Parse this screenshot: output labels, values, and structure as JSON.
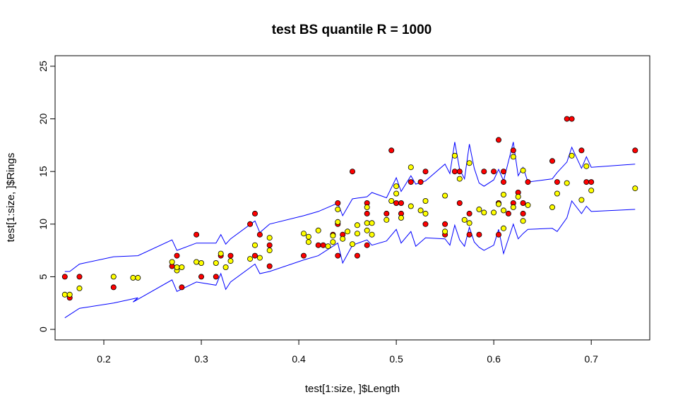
{
  "chart_data": {
    "type": "scatter",
    "title": "test BS quantile R = 1000",
    "xlabel": "test[1:size, ]$Length",
    "ylabel": "test[1:size, ]$Rings",
    "xlim": [
      0.15,
      0.76
    ],
    "ylim": [
      -1.0,
      26.0
    ],
    "x_ticks": [
      0.2,
      0.3,
      0.4,
      0.5,
      0.6,
      0.7
    ],
    "x_tick_labels": [
      "0.2",
      "0.3",
      "0.4",
      "0.5",
      "0.6",
      "0.7"
    ],
    "y_ticks": [
      0,
      5,
      10,
      15,
      20,
      25
    ],
    "y_tick_labels": [
      "0",
      "5",
      "10",
      "15",
      "20",
      "25"
    ],
    "grid": false,
    "colors": {
      "observed": "#ff0000",
      "predicted": "#ffff00",
      "band": "#0000ff",
      "outline": "#000000"
    },
    "series": [
      {
        "role": "observed",
        "points": [
          [
            0.16,
            5
          ],
          [
            0.165,
            3
          ],
          [
            0.175,
            5
          ],
          [
            0.21,
            4
          ],
          [
            0.27,
            6
          ],
          [
            0.275,
            7
          ],
          [
            0.28,
            4
          ],
          [
            0.295,
            9
          ],
          [
            0.3,
            5
          ],
          [
            0.315,
            5
          ],
          [
            0.32,
            7
          ],
          [
            0.33,
            7
          ],
          [
            0.35,
            10
          ],
          [
            0.355,
            11
          ],
          [
            0.355,
            7
          ],
          [
            0.36,
            9
          ],
          [
            0.37,
            6
          ],
          [
            0.37,
            8
          ],
          [
            0.405,
            7
          ],
          [
            0.42,
            8
          ],
          [
            0.425,
            8
          ],
          [
            0.435,
            9
          ],
          [
            0.44,
            7
          ],
          [
            0.44,
            10
          ],
          [
            0.44,
            12
          ],
          [
            0.445,
            9
          ],
          [
            0.455,
            15
          ],
          [
            0.46,
            7
          ],
          [
            0.47,
            11
          ],
          [
            0.47,
            12
          ],
          [
            0.47,
            8
          ],
          [
            0.49,
            11
          ],
          [
            0.495,
            17
          ],
          [
            0.5,
            12
          ],
          [
            0.505,
            12
          ],
          [
            0.505,
            11
          ],
          [
            0.515,
            14
          ],
          [
            0.525,
            14
          ],
          [
            0.53,
            15
          ],
          [
            0.53,
            10
          ],
          [
            0.55,
            10
          ],
          [
            0.55,
            9
          ],
          [
            0.56,
            15
          ],
          [
            0.565,
            15
          ],
          [
            0.565,
            12
          ],
          [
            0.575,
            9
          ],
          [
            0.575,
            11
          ],
          [
            0.585,
            9
          ],
          [
            0.59,
            15
          ],
          [
            0.6,
            15
          ],
          [
            0.605,
            18
          ],
          [
            0.605,
            9
          ],
          [
            0.605,
            12
          ],
          [
            0.61,
            14
          ],
          [
            0.61,
            15
          ],
          [
            0.615,
            11
          ],
          [
            0.62,
            17
          ],
          [
            0.62,
            12
          ],
          [
            0.625,
            13
          ],
          [
            0.63,
            12
          ],
          [
            0.63,
            11
          ],
          [
            0.635,
            14
          ],
          [
            0.66,
            16
          ],
          [
            0.665,
            14
          ],
          [
            0.675,
            20
          ],
          [
            0.68,
            20
          ],
          [
            0.69,
            17
          ],
          [
            0.695,
            14
          ],
          [
            0.7,
            14
          ],
          [
            0.745,
            17
          ]
        ]
      },
      {
        "role": "predicted",
        "points": [
          [
            0.16,
            3.3
          ],
          [
            0.165,
            3.3
          ],
          [
            0.175,
            3.9
          ],
          [
            0.21,
            5
          ],
          [
            0.23,
            4.9
          ],
          [
            0.235,
            4.9
          ],
          [
            0.27,
            6.4
          ],
          [
            0.275,
            5.6
          ],
          [
            0.275,
            5.9
          ],
          [
            0.28,
            5.9
          ],
          [
            0.295,
            6.4
          ],
          [
            0.3,
            6.3
          ],
          [
            0.315,
            6.3
          ],
          [
            0.32,
            7.2
          ],
          [
            0.325,
            5.9
          ],
          [
            0.33,
            6.5
          ],
          [
            0.35,
            6.7
          ],
          [
            0.355,
            8
          ],
          [
            0.36,
            6.8
          ],
          [
            0.37,
            7.5
          ],
          [
            0.37,
            8.7
          ],
          [
            0.405,
            9.1
          ],
          [
            0.41,
            8.3
          ],
          [
            0.41,
            8.8
          ],
          [
            0.42,
            9.4
          ],
          [
            0.43,
            7.9
          ],
          [
            0.435,
            8.3
          ],
          [
            0.435,
            8.9
          ],
          [
            0.44,
            10.2
          ],
          [
            0.44,
            11.4
          ],
          [
            0.445,
            8.6
          ],
          [
            0.45,
            9.3
          ],
          [
            0.455,
            8.1
          ],
          [
            0.46,
            9.9
          ],
          [
            0.46,
            9.1
          ],
          [
            0.47,
            10.1
          ],
          [
            0.47,
            11.6
          ],
          [
            0.47,
            9.4
          ],
          [
            0.475,
            9
          ],
          [
            0.475,
            10.1
          ],
          [
            0.49,
            10.4
          ],
          [
            0.495,
            12.2
          ],
          [
            0.5,
            12.9
          ],
          [
            0.5,
            13.6
          ],
          [
            0.505,
            10.6
          ],
          [
            0.515,
            11.7
          ],
          [
            0.515,
            15.4
          ],
          [
            0.525,
            11.3
          ],
          [
            0.53,
            11
          ],
          [
            0.53,
            12.2
          ],
          [
            0.55,
            12.7
          ],
          [
            0.55,
            9.3
          ],
          [
            0.56,
            16.5
          ],
          [
            0.565,
            14.3
          ],
          [
            0.57,
            10.4
          ],
          [
            0.575,
            10.1
          ],
          [
            0.575,
            15.8
          ],
          [
            0.585,
            11.4
          ],
          [
            0.59,
            11.1
          ],
          [
            0.6,
            11.1
          ],
          [
            0.605,
            11.9
          ],
          [
            0.61,
            12.8
          ],
          [
            0.61,
            11.3
          ],
          [
            0.61,
            9.6
          ],
          [
            0.62,
            11.6
          ],
          [
            0.62,
            16.4
          ],
          [
            0.625,
            12.6
          ],
          [
            0.63,
            15.1
          ],
          [
            0.63,
            10.3
          ],
          [
            0.635,
            11.8
          ],
          [
            0.66,
            11.6
          ],
          [
            0.665,
            12.9
          ],
          [
            0.675,
            13.9
          ],
          [
            0.68,
            16.5
          ],
          [
            0.69,
            12.3
          ],
          [
            0.695,
            15.5
          ],
          [
            0.7,
            13.2
          ],
          [
            0.745,
            13.4
          ]
        ]
      },
      {
        "role": "band",
        "name": "upper",
        "points": [
          [
            0.16,
            5.5
          ],
          [
            0.165,
            5.5
          ],
          [
            0.175,
            6.2
          ],
          [
            0.21,
            6.9
          ],
          [
            0.235,
            7
          ],
          [
            0.27,
            8.5
          ],
          [
            0.275,
            7.5
          ],
          [
            0.295,
            8.2
          ],
          [
            0.315,
            8.2
          ],
          [
            0.32,
            9
          ],
          [
            0.325,
            8.1
          ],
          [
            0.33,
            8.6
          ],
          [
            0.355,
            10.3
          ],
          [
            0.36,
            9.2
          ],
          [
            0.37,
            10
          ],
          [
            0.405,
            10.8
          ],
          [
            0.42,
            11.2
          ],
          [
            0.44,
            12
          ],
          [
            0.445,
            10.8
          ],
          [
            0.455,
            12.4
          ],
          [
            0.47,
            12.6
          ],
          [
            0.475,
            13
          ],
          [
            0.49,
            12.5
          ],
          [
            0.5,
            14.4
          ],
          [
            0.505,
            13.1
          ],
          [
            0.515,
            14.6
          ],
          [
            0.52,
            13.8
          ],
          [
            0.53,
            14.1
          ],
          [
            0.55,
            15.7
          ],
          [
            0.555,
            14.8
          ],
          [
            0.56,
            17.8
          ],
          [
            0.565,
            15.2
          ],
          [
            0.57,
            14.3
          ],
          [
            0.575,
            17.6
          ],
          [
            0.58,
            15.3
          ],
          [
            0.585,
            13.9
          ],
          [
            0.59,
            13.6
          ],
          [
            0.6,
            14.2
          ],
          [
            0.605,
            15.2
          ],
          [
            0.61,
            14.1
          ],
          [
            0.62,
            17.8
          ],
          [
            0.625,
            14.6
          ],
          [
            0.63,
            15.4
          ],
          [
            0.635,
            14
          ],
          [
            0.66,
            14.3
          ],
          [
            0.665,
            14.9
          ],
          [
            0.675,
            15.9
          ],
          [
            0.68,
            17.3
          ],
          [
            0.69,
            15.3
          ],
          [
            0.695,
            16.4
          ],
          [
            0.7,
            15.4
          ],
          [
            0.745,
            15.7
          ]
        ]
      },
      {
        "role": "band",
        "name": "lower",
        "points": [
          [
            0.16,
            1.1
          ],
          [
            0.165,
            1.4
          ],
          [
            0.175,
            2.0
          ],
          [
            0.21,
            2.5
          ],
          [
            0.235,
            3
          ],
          [
            0.23,
            2.6
          ],
          [
            0.27,
            4.7
          ],
          [
            0.275,
            3.6
          ],
          [
            0.295,
            4.5
          ],
          [
            0.315,
            4.2
          ],
          [
            0.32,
            5.3
          ],
          [
            0.325,
            3.8
          ],
          [
            0.33,
            4.5
          ],
          [
            0.355,
            6.2
          ],
          [
            0.36,
            5.3
          ],
          [
            0.37,
            5.5
          ],
          [
            0.405,
            6.6
          ],
          [
            0.42,
            7
          ],
          [
            0.44,
            8.2
          ],
          [
            0.445,
            6.3
          ],
          [
            0.455,
            8
          ],
          [
            0.47,
            8.5
          ],
          [
            0.475,
            8
          ],
          [
            0.49,
            8.4
          ],
          [
            0.5,
            9.5
          ],
          [
            0.505,
            8.2
          ],
          [
            0.515,
            9.3
          ],
          [
            0.52,
            7.9
          ],
          [
            0.53,
            8.7
          ],
          [
            0.55,
            8.6
          ],
          [
            0.555,
            8
          ],
          [
            0.56,
            9.9
          ],
          [
            0.565,
            8.5
          ],
          [
            0.57,
            7.9
          ],
          [
            0.575,
            9.7
          ],
          [
            0.58,
            8.3
          ],
          [
            0.585,
            7.8
          ],
          [
            0.59,
            7.5
          ],
          [
            0.6,
            8
          ],
          [
            0.605,
            9.5
          ],
          [
            0.61,
            7.2
          ],
          [
            0.62,
            10
          ],
          [
            0.625,
            8.6
          ],
          [
            0.63,
            9.1
          ],
          [
            0.635,
            9.5
          ],
          [
            0.66,
            9.6
          ],
          [
            0.665,
            9.3
          ],
          [
            0.675,
            10.6
          ],
          [
            0.68,
            12.2
          ],
          [
            0.69,
            11
          ],
          [
            0.695,
            11.7
          ],
          [
            0.7,
            11.2
          ],
          [
            0.745,
            11.4
          ]
        ]
      }
    ]
  }
}
